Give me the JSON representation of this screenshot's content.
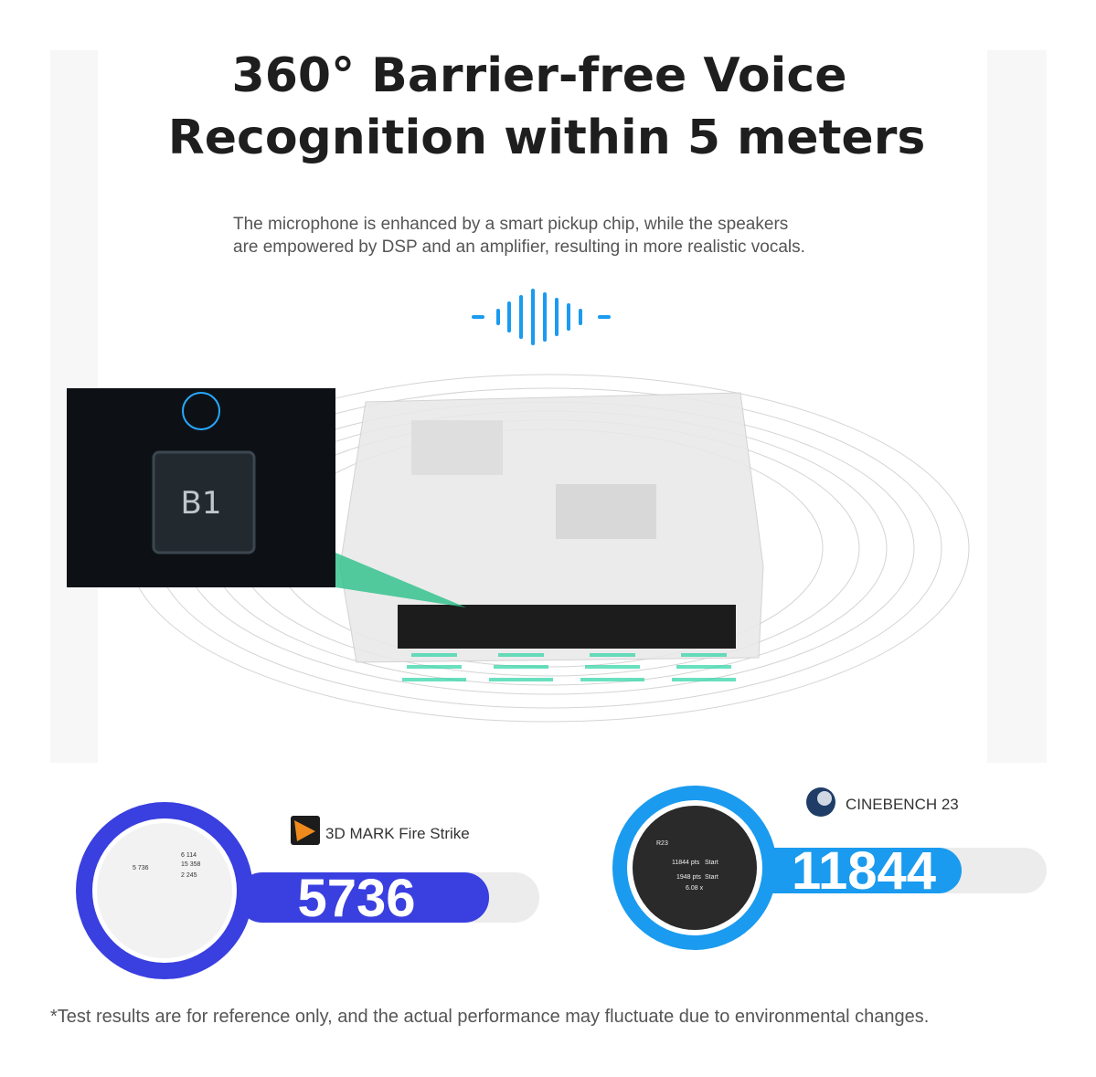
{
  "header": {
    "title_lines": [
      "360° Barrier-free Voice",
      "Recognition within 5 meters"
    ],
    "subtitle_lines": [
      "The microphone is enhanced by a smart pickup chip, while the speakers",
      "are empowered by DSP and an amplifier, resulting in more realistic vocals."
    ]
  },
  "chip": {
    "label": "B1"
  },
  "benchmarks": [
    {
      "name": "3D MARK Fire Strike",
      "score": "5736",
      "thumbnail_texts": [
        "5 736",
        "6 114",
        "15 358",
        "2 245"
      ]
    },
    {
      "name": "CINEBENCH 23",
      "score": "11844",
      "thumbnail_texts": [
        "R23",
        "11844 pts",
        "Start",
        "1948 pts",
        "Start",
        "6.08 x"
      ]
    }
  ],
  "footnote": "*Test results are for reference only, and the actual performance may fluctuate due to environmental changes."
}
